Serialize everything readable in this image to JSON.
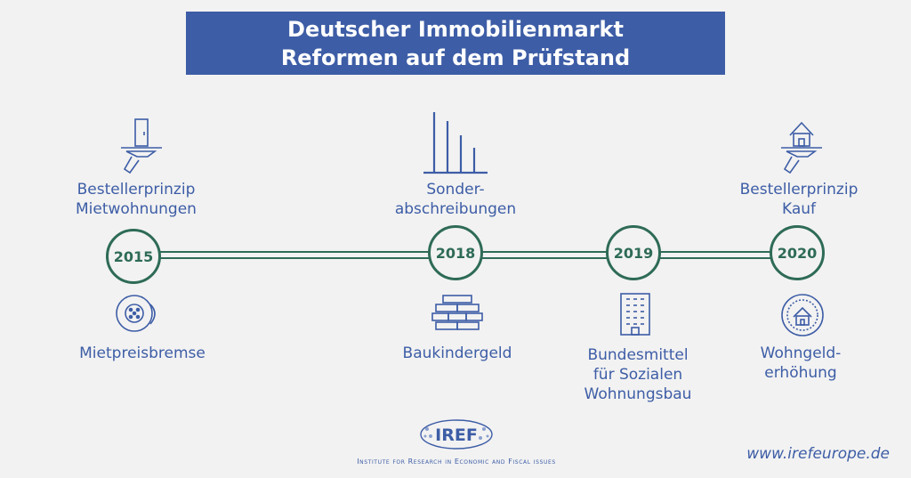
{
  "title": {
    "line1": "Deutscher Immobilienmarkt",
    "line2": "Reformen auf dem Prüfstand"
  },
  "timeline": {
    "years": [
      "2015",
      "2018",
      "2019",
      "2020"
    ]
  },
  "labels_top": {
    "y2015": [
      "Bestellerprinzip",
      "Mietwohnungen"
    ],
    "y2018": [
      "Sonder-",
      "abschreibungen"
    ],
    "y2020": [
      "Bestellerprinzip",
      "Kauf"
    ]
  },
  "labels_bottom": {
    "y2015": [
      "Mietpreisbremse"
    ],
    "y2018": [
      "Baukindergeld"
    ],
    "y2019": [
      "Bundesmittel",
      "für Sozialen",
      "Wohnungsbau"
    ],
    "y2020": [
      "Wohngeld-",
      "erhöhung"
    ]
  },
  "icons": {
    "y2015_top": "door-hand-icon",
    "y2015_bottom": "rent-brake-icon",
    "y2018_top": "bar-decline-icon",
    "y2018_bottom": "bricks-icon",
    "y2019_bottom": "apartment-building-icon",
    "y2020_top": "house-hand-icon",
    "y2020_bottom": "house-coin-icon"
  },
  "footer": {
    "logo": "IREF",
    "institute": "Institute for Research in Economic and Fiscal issues",
    "website": "www.irefeurope.de"
  },
  "colors": {
    "title_bg": "#3d5da6",
    "accent_green": "#2e6b57",
    "text_blue": "#3d5da6",
    "background": "#f2f2f2"
  }
}
